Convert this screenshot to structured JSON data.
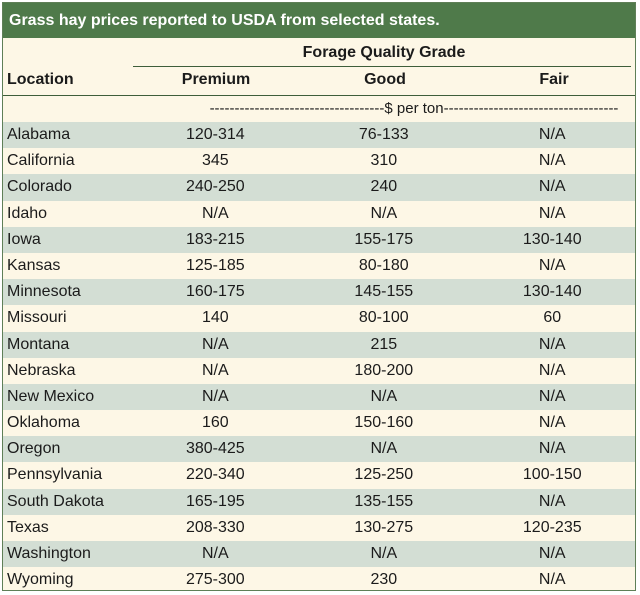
{
  "title": "Grass hay prices reported to USDA from selected states.",
  "header": {
    "group_label": "Forage Quality Grade",
    "location_label": "Location",
    "columns": [
      "Premium",
      "Good",
      "Fair"
    ],
    "unit_label": "-----------------------------------$ per ton-----------------------------------"
  },
  "rows": [
    {
      "location": "Alabama",
      "premium": "120-314",
      "good": "76-133",
      "fair": "N/A"
    },
    {
      "location": "California",
      "premium": "345",
      "good": "310",
      "fair": "N/A"
    },
    {
      "location": "Colorado",
      "premium": "240-250",
      "good": "240",
      "fair": "N/A"
    },
    {
      "location": "Idaho",
      "premium": "N/A",
      "good": "N/A",
      "fair": "N/A"
    },
    {
      "location": "Iowa",
      "premium": "183-215",
      "good": "155-175",
      "fair": "130-140"
    },
    {
      "location": "Kansas",
      "premium": "125-185",
      "good": "80-180",
      "fair": "N/A"
    },
    {
      "location": "Minnesota",
      "premium": "160-175",
      "good": "145-155",
      "fair": "130-140"
    },
    {
      "location": "Missouri",
      "premium": "140",
      "good": "80-100",
      "fair": "60"
    },
    {
      "location": "Montana",
      "premium": "N/A",
      "good": "215",
      "fair": "N/A"
    },
    {
      "location": "Nebraska",
      "premium": "N/A",
      "good": "180-200",
      "fair": "N/A"
    },
    {
      "location": "New Mexico",
      "premium": "N/A",
      "good": "N/A",
      "fair": "N/A"
    },
    {
      "location": "Oklahoma",
      "premium": "160",
      "good": "150-160",
      "fair": "N/A"
    },
    {
      "location": "Oregon",
      "premium": "380-425",
      "good": "N/A",
      "fair": "N/A"
    },
    {
      "location": "Pennsylvania",
      "premium": "220-340",
      "good": "125-250",
      "fair": "100-150"
    },
    {
      "location": "South Dakota",
      "premium": "165-195",
      "good": "135-155",
      "fair": "N/A"
    },
    {
      "location": "Texas",
      "premium": "208-330",
      "good": "130-275",
      "fair": "120-235"
    },
    {
      "location": "Washington",
      "premium": "N/A",
      "good": "N/A",
      "fair": "N/A"
    },
    {
      "location": "Wyoming",
      "premium": "275-300",
      "good": "230",
      "fair": "N/A"
    }
  ],
  "colors": {
    "title_bg": "#4f7a4a",
    "row_alt": "#d3ded4",
    "row_base": "#fdf7e6"
  }
}
